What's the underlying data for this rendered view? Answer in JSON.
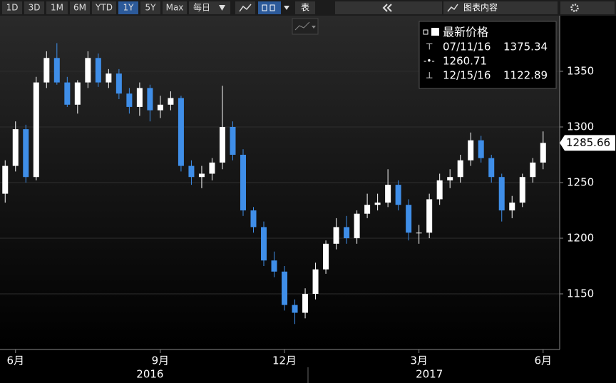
{
  "toolbar": {
    "ranges": [
      "1D",
      "3D",
      "1M",
      "6M",
      "YTD",
      "1Y",
      "5Y",
      "Max"
    ],
    "selected": "1Y",
    "frequency": "每日",
    "table": "表",
    "content": "图表内容"
  },
  "chart_data": {
    "type": "candlestick",
    "categories": [
      null,
      "6月",
      null,
      null,
      null,
      null,
      null,
      null,
      null,
      null,
      null,
      null,
      null,
      null,
      null,
      "9月",
      null,
      null,
      null,
      null,
      null,
      null,
      null,
      null,
      null,
      null,
      null,
      "12月",
      null,
      null,
      null,
      null,
      null,
      null,
      null,
      null,
      null,
      null,
      null,
      null,
      "3月",
      null,
      null,
      null,
      null,
      null,
      null,
      null,
      null,
      null,
      null,
      null,
      "6月"
    ],
    "years": [
      null,
      null,
      null,
      null,
      null,
      null,
      null,
      null,
      null,
      null,
      null,
      null,
      null,
      null,
      "2016",
      null,
      null,
      null,
      null,
      null,
      null,
      null,
      null,
      null,
      null,
      null,
      null,
      null,
      null,
      null,
      null,
      null,
      null,
      null,
      null,
      null,
      null,
      null,
      null,
      null,
      null,
      "2017",
      null,
      null,
      null,
      null,
      null,
      null,
      null,
      null,
      null,
      null,
      null
    ],
    "open": [
      1240,
      1265,
      1298,
      1255,
      1340,
      1362,
      1340,
      1320,
      1340,
      1362,
      1340,
      1348,
      1330,
      1318,
      1335,
      1315,
      1320,
      1326,
      1265,
      1255,
      1258,
      1268,
      1300,
      1275,
      1225,
      1210,
      1180,
      1170,
      1140,
      1133,
      1150,
      1172,
      1195,
      1210,
      1200,
      1222,
      1230,
      1232,
      1248,
      1230,
      1205,
      1205,
      1235,
      1252,
      1255,
      1270,
      1288,
      1272,
      1255,
      1225,
      1232,
      1255,
      1268
    ],
    "high": [
      1270,
      1305,
      1302,
      1345,
      1368,
      1375.34,
      1345,
      1342,
      1368,
      1366,
      1352,
      1352,
      1335,
      1340,
      1338,
      1328,
      1332,
      1328,
      1270,
      1265,
      1272,
      1337,
      1305,
      1280,
      1228,
      1215,
      1188,
      1175,
      1145,
      1155,
      1178,
      1198,
      1218,
      1220,
      1225,
      1240,
      1240,
      1262,
      1252,
      1235,
      1212,
      1240,
      1258,
      1262,
      1275,
      1295,
      1292,
      1275,
      1258,
      1238,
      1258,
      1272,
      1296
    ],
    "low": [
      1232,
      1260,
      1250,
      1252,
      1335,
      1338,
      1318,
      1312,
      1335,
      1336,
      1335,
      1325,
      1312,
      1310,
      1305,
      1308,
      1315,
      1260,
      1248,
      1245,
      1252,
      1262,
      1270,
      1220,
      1205,
      1175,
      1165,
      1135,
      1122.89,
      1128,
      1145,
      1168,
      1190,
      1195,
      1195,
      1218,
      1225,
      1228,
      1225,
      1198,
      1195,
      1200,
      1230,
      1245,
      1250,
      1265,
      1268,
      1250,
      1215,
      1218,
      1228,
      1250,
      1262
    ],
    "close": [
      1265,
      1298,
      1255,
      1340,
      1362,
      1340,
      1320,
      1340,
      1362,
      1340,
      1348,
      1330,
      1318,
      1335,
      1315,
      1320,
      1326,
      1265,
      1255,
      1258,
      1268,
      1300,
      1275,
      1225,
      1210,
      1180,
      1170,
      1140,
      1133,
      1150,
      1172,
      1195,
      1210,
      1200,
      1222,
      1230,
      1232,
      1248,
      1230,
      1205,
      1205,
      1235,
      1252,
      1255,
      1270,
      1288,
      1272,
      1255,
      1225,
      1232,
      1255,
      1268,
      1285.66
    ],
    "up_color": "#ffffff",
    "down_color": "#3f8ee8",
    "ylim": [
      1100,
      1400
    ],
    "yticks": [
      1150,
      1200,
      1250,
      1300,
      1350
    ],
    "grid": true,
    "last_price": 1285.66,
    "legend": {
      "title": "最新价格",
      "high": {
        "date": "07/11/16",
        "value": 1375.34
      },
      "average": 1260.71,
      "low": {
        "date": "12/15/16",
        "value": 1122.89
      }
    }
  }
}
